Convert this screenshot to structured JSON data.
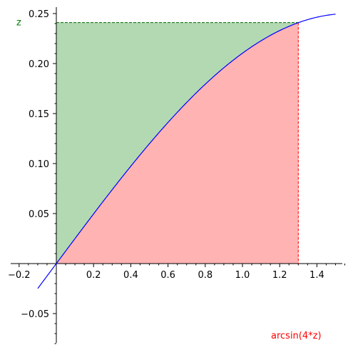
{
  "chart_data": {
    "type": "line",
    "title": "",
    "xlabel": "",
    "ylabel": "",
    "xlim": [
      -0.22,
      1.55
    ],
    "ylim": [
      -0.08,
      0.258
    ],
    "grid": false,
    "function_curve": {
      "expression": "sin(x)/4",
      "x_range": [
        -0.1,
        1.5
      ],
      "color": "#0000ff"
    },
    "point": {
      "x": 1.3,
      "y": 0.241
    },
    "regions": [
      {
        "name": "below-curve",
        "color": "#ffb3b3"
      },
      {
        "name": "above-curve",
        "color": "#b3d9b3"
      }
    ],
    "annotations": {
      "y_marker_label": "z",
      "y_marker_color": "#008000",
      "x_marker_label": "arcsin(4*z)",
      "x_marker_color": "#ff0000"
    },
    "x_ticks": [
      {
        "value": -0.2,
        "label": "−0.2"
      },
      {
        "value": 0.2,
        "label": "0.2"
      },
      {
        "value": 0.4,
        "label": "0.4"
      },
      {
        "value": 0.6,
        "label": "0.6"
      },
      {
        "value": 0.8,
        "label": "0.8"
      },
      {
        "value": 1.0,
        "label": "1.0"
      },
      {
        "value": 1.2,
        "label": "1.2"
      },
      {
        "value": 1.4,
        "label": "1.4"
      }
    ],
    "y_ticks": [
      {
        "value": -0.05,
        "label": "−0.05"
      },
      {
        "value": 0.05,
        "label": "0.05"
      },
      {
        "value": 0.1,
        "label": "0.10"
      },
      {
        "value": 0.15,
        "label": "0.15"
      },
      {
        "value": 0.2,
        "label": "0.20"
      },
      {
        "value": 0.25,
        "label": "0.25"
      }
    ],
    "x_minor_step": 0.05,
    "y_minor_step": 0.01
  }
}
